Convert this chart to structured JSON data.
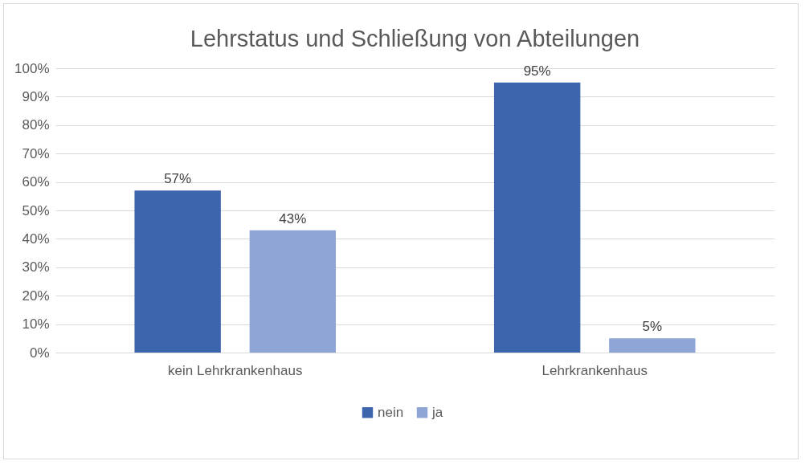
{
  "chart_data": {
    "type": "bar",
    "title": "Lehrstatus und Schließung von Abteilungen",
    "categories": [
      "kein Lehrkrankenhaus",
      "Lehrkrankenhaus"
    ],
    "series": [
      {
        "name": "nein",
        "color": "#3c65ae",
        "values": [
          57,
          95
        ],
        "value_labels": [
          "57%",
          "95%"
        ]
      },
      {
        "name": "ja",
        "color": "#8fa5d6",
        "values": [
          43,
          5
        ],
        "value_labels": [
          "43%",
          "5%"
        ]
      }
    ],
    "ylim": [
      0,
      100
    ],
    "yticks": [
      {
        "value": 0,
        "label": "0%"
      },
      {
        "value": 10,
        "label": "10%"
      },
      {
        "value": 20,
        "label": "20%"
      },
      {
        "value": 30,
        "label": "30%"
      },
      {
        "value": 40,
        "label": "40%"
      },
      {
        "value": 50,
        "label": "50%"
      },
      {
        "value": 60,
        "label": "60%"
      },
      {
        "value": 70,
        "label": "70%"
      },
      {
        "value": 80,
        "label": "80%"
      },
      {
        "value": 90,
        "label": "90%"
      },
      {
        "value": 100,
        "label": "100%"
      }
    ],
    "grid": "y",
    "legend": "bottom"
  }
}
